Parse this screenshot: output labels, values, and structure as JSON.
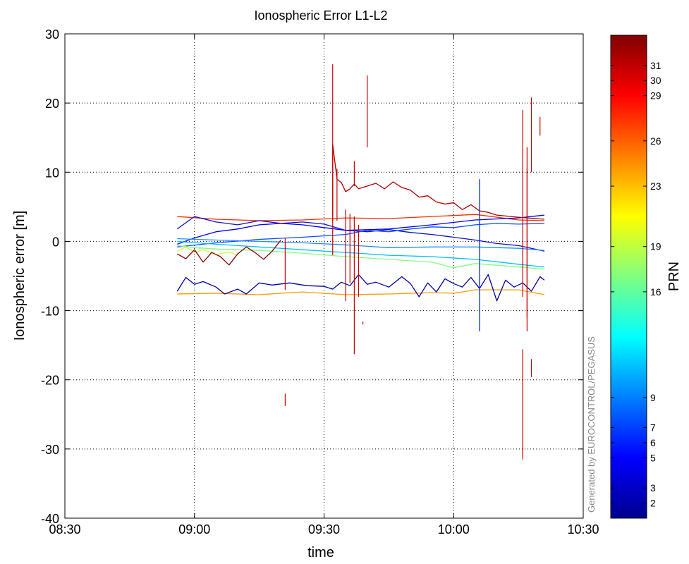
{
  "chart_data": {
    "type": "line",
    "title": "Ionospheric Error L1-L2",
    "xlabel": "time",
    "ylabel": "Ionospheric error [m]",
    "xlim": [
      "08:30",
      "10:30"
    ],
    "ylim": [
      -40,
      30
    ],
    "x_ticks": [
      "08:30",
      "09:00",
      "09:30",
      "10:00",
      "10:30"
    ],
    "y_ticks": [
      "30",
      "20",
      "10",
      "0",
      "-10",
      "-20",
      "-30",
      "-40"
    ],
    "grid": true,
    "colorbar": {
      "label": "PRN",
      "range": [
        1,
        33
      ],
      "ticks": [
        "31",
        "30",
        "29",
        "26",
        "23",
        "19",
        "16",
        "9",
        "7",
        "6",
        "5",
        "3",
        "2"
      ],
      "colormap": "jet"
    },
    "watermark": "Generated by EUROCONTROL/PEGASUS",
    "series": [
      {
        "prn": 30,
        "color": "#ff2a00",
        "points": [
          [
            "08:56",
            3.6
          ],
          [
            "09:05",
            3.2
          ],
          [
            "09:15",
            3.0
          ],
          [
            "09:25",
            3.1
          ],
          [
            "09:35",
            3.4
          ],
          [
            "09:45",
            3.3
          ],
          [
            "09:55",
            3.6
          ],
          [
            "10:05",
            3.9
          ],
          [
            "10:15",
            3.1
          ],
          [
            "10:21",
            3.0
          ]
        ]
      },
      {
        "prn": 3,
        "color": "#1010c8",
        "points": [
          [
            "08:56",
            1.8
          ],
          [
            "09:00",
            3.6
          ],
          [
            "09:05",
            2.8
          ],
          [
            "09:10",
            2.4
          ],
          [
            "09:15",
            3.0
          ],
          [
            "09:20",
            2.6
          ],
          [
            "09:25",
            2.8
          ],
          [
            "09:30",
            2.5
          ],
          [
            "09:35",
            1.6
          ],
          [
            "09:40",
            1.4
          ],
          [
            "09:45",
            1.7
          ],
          [
            "09:50",
            1.3
          ],
          [
            "09:55",
            1.0
          ],
          [
            "10:00",
            0.6
          ],
          [
            "10:05",
            0.2
          ],
          [
            "10:10",
            -0.3
          ],
          [
            "10:15",
            -0.6
          ],
          [
            "10:21",
            -1.4
          ]
        ]
      },
      {
        "prn": 5,
        "color": "#0000ff",
        "points": [
          [
            "08:56",
            -0.4
          ],
          [
            "09:00",
            0.5
          ],
          [
            "09:05",
            1.4
          ],
          [
            "09:10",
            1.8
          ],
          [
            "09:15",
            2.4
          ],
          [
            "09:20",
            2.6
          ],
          [
            "09:25",
            2.4
          ],
          [
            "09:30",
            2.0
          ],
          [
            "09:35",
            1.6
          ],
          [
            "09:45",
            1.8
          ],
          [
            "09:55",
            2.4
          ],
          [
            "10:05",
            3.1
          ],
          [
            "10:15",
            3.4
          ],
          [
            "10:21",
            3.8
          ]
        ]
      },
      {
        "prn": 6,
        "color": "#0a4cff",
        "points": [
          [
            "08:56",
            -0.8
          ],
          [
            "09:05",
            -0.2
          ],
          [
            "09:15",
            0.3
          ],
          [
            "09:25",
            0.6
          ],
          [
            "09:35",
            1.0
          ],
          [
            "09:40",
            1.6
          ],
          [
            "09:45",
            1.4
          ],
          [
            "09:50",
            1.8
          ],
          [
            "09:55",
            2.1
          ],
          [
            "10:00",
            2.0
          ],
          [
            "10:05",
            2.4
          ],
          [
            "10:10",
            2.6
          ],
          [
            "10:15",
            2.5
          ],
          [
            "10:21",
            2.6
          ]
        ]
      },
      {
        "prn": 9,
        "color": "#1e90ff",
        "points": [
          [
            "08:56",
            0.4
          ],
          [
            "09:05",
            0.2
          ],
          [
            "09:15",
            0.0
          ],
          [
            "09:25",
            -0.2
          ],
          [
            "09:35",
            -0.5
          ],
          [
            "09:45",
            -0.9
          ],
          [
            "09:55",
            -0.8
          ],
          [
            "10:05",
            -0.8
          ],
          [
            "10:15",
            -1.0
          ],
          [
            "10:21",
            -1.3
          ]
        ]
      },
      {
        "prn": 11,
        "color": "#00c0ff",
        "points": [
          [
            "08:56",
            0.0
          ],
          [
            "09:05",
            -0.4
          ],
          [
            "09:15",
            -0.8
          ],
          [
            "09:25",
            -1.2
          ],
          [
            "09:35",
            -1.6
          ],
          [
            "09:45",
            -2.0
          ],
          [
            "09:55",
            -2.2
          ],
          [
            "10:05",
            -2.6
          ],
          [
            "10:15",
            -3.3
          ],
          [
            "10:21",
            -3.7
          ]
        ]
      },
      {
        "prn": 18,
        "color": "#80ff80",
        "points": [
          [
            "08:56",
            -0.6
          ],
          [
            "09:00",
            -0.9
          ],
          [
            "09:05",
            -1.1
          ],
          [
            "09:15",
            -1.3
          ],
          [
            "09:25",
            -1.7
          ],
          [
            "09:35",
            -2.2
          ],
          [
            "09:45",
            -2.6
          ],
          [
            "09:55",
            -3.0
          ],
          [
            "10:00",
            -3.8
          ],
          [
            "10:05",
            -3.2
          ],
          [
            "10:15",
            -3.7
          ],
          [
            "10:21",
            -4.0
          ]
        ]
      },
      {
        "prn": 20,
        "color": "#ccff33",
        "points": [
          [
            "08:56",
            -1.4
          ],
          [
            "08:58",
            -0.8
          ],
          [
            "09:00",
            -1.6
          ],
          [
            "09:02",
            -1.2
          ],
          [
            "09:05",
            -1.9
          ],
          [
            "09:08",
            -1.5
          ],
          [
            "09:10",
            -2.0
          ]
        ]
      },
      {
        "prn": 33,
        "color": "#8b0000",
        "points": [
          [
            "08:56",
            -1.8
          ],
          [
            "08:58",
            -2.5
          ],
          [
            "09:00",
            -1.2
          ],
          [
            "09:02",
            -3.0
          ],
          [
            "09:04",
            -1.6
          ],
          [
            "09:06",
            -2.2
          ],
          [
            "09:08",
            -3.4
          ],
          [
            "09:10",
            -1.8
          ],
          [
            "09:12",
            -0.8
          ],
          [
            "09:14",
            -1.6
          ],
          [
            "09:16",
            -2.6
          ],
          [
            "09:18",
            -1.4
          ],
          [
            "09:20",
            0.2
          ]
        ]
      },
      {
        "prn": 32,
        "color": "#b00000",
        "points": [
          [
            "09:32",
            3.0
          ],
          [
            "09:32",
            14.0
          ],
          [
            "09:33",
            9.0
          ],
          [
            "09:34",
            8.5
          ],
          [
            "09:35",
            7.2
          ],
          [
            "09:36",
            7.6
          ],
          [
            "09:37",
            8.3
          ],
          [
            "09:38",
            7.6
          ],
          [
            "09:40",
            8.0
          ],
          [
            "09:42",
            8.4
          ],
          [
            "09:44",
            7.6
          ],
          [
            "09:46",
            8.6
          ],
          [
            "09:48",
            7.8
          ],
          [
            "09:50",
            7.4
          ],
          [
            "09:52",
            6.4
          ],
          [
            "09:54",
            6.6
          ],
          [
            "09:56",
            5.7
          ],
          [
            "09:58",
            5.4
          ],
          [
            "10:00",
            5.6
          ],
          [
            "10:02",
            4.6
          ],
          [
            "10:04",
            5.3
          ],
          [
            "10:06",
            4.4
          ],
          [
            "10:08",
            4.2
          ],
          [
            "10:10",
            3.8
          ],
          [
            "10:15",
            3.5
          ],
          [
            "10:21",
            3.2
          ]
        ]
      },
      {
        "prn": 23,
        "color": "#ff9900",
        "points": [
          [
            "08:56",
            -7.6
          ],
          [
            "09:05",
            -7.5
          ],
          [
            "09:15",
            -7.7
          ],
          [
            "09:25",
            -7.3
          ],
          [
            "09:35",
            -7.7
          ],
          [
            "09:45",
            -7.6
          ],
          [
            "09:55",
            -7.4
          ],
          [
            "10:00",
            -7.5
          ],
          [
            "10:05",
            -7.0
          ],
          [
            "10:15",
            -7.0
          ],
          [
            "10:21",
            -7.7
          ]
        ]
      },
      {
        "prn": 2,
        "color": "#0000a8",
        "points": [
          [
            "08:56",
            -7.2
          ],
          [
            "08:58",
            -5.2
          ],
          [
            "09:00",
            -6.2
          ],
          [
            "09:02",
            -5.8
          ],
          [
            "09:05",
            -6.6
          ],
          [
            "09:07",
            -7.6
          ],
          [
            "09:10",
            -6.9
          ],
          [
            "09:12",
            -7.6
          ],
          [
            "09:15",
            -6.0
          ],
          [
            "09:18",
            -6.3
          ],
          [
            "09:22",
            -6.0
          ],
          [
            "09:26",
            -6.4
          ],
          [
            "09:30",
            -6.5
          ],
          [
            "09:32",
            -6.9
          ],
          [
            "09:34",
            -5.9
          ],
          [
            "09:36",
            -6.4
          ],
          [
            "09:38",
            -4.8
          ],
          [
            "09:40",
            -6.2
          ],
          [
            "09:42",
            -5.9
          ],
          [
            "09:45",
            -6.6
          ],
          [
            "09:48",
            -5.1
          ],
          [
            "09:50",
            -6.1
          ],
          [
            "09:52",
            -8.0
          ],
          [
            "09:54",
            -6.0
          ],
          [
            "09:56",
            -7.3
          ],
          [
            "09:58",
            -5.4
          ],
          [
            "10:00",
            -6.1
          ],
          [
            "10:02",
            -6.6
          ],
          [
            "10:04",
            -5.2
          ],
          [
            "10:06",
            -6.8
          ],
          [
            "10:08",
            -4.8
          ],
          [
            "10:10",
            -8.6
          ],
          [
            "10:12",
            -5.6
          ],
          [
            "10:14",
            -6.6
          ],
          [
            "10:16",
            -6.0
          ],
          [
            "10:18",
            -7.2
          ],
          [
            "10:20",
            -5.1
          ],
          [
            "10:21",
            -5.6
          ]
        ]
      },
      {
        "prn": 7,
        "color": "#0030ff",
        "points": [
          [
            "10:06",
            9.0
          ],
          [
            "10:06",
            -13.0
          ]
        ]
      }
    ],
    "spikes": [
      {
        "x": "09:21",
        "y1": -7.0,
        "y2": 0.5
      },
      {
        "x": "09:21",
        "y1": -22.0,
        "y2": -23.8
      },
      {
        "x": "09:32",
        "y1": -2.0,
        "y2": 25.6
      },
      {
        "x": "09:33",
        "y1": 3.0,
        "y2": 10.5
      },
      {
        "x": "09:35",
        "y1": -8.6,
        "y2": 4.6
      },
      {
        "x": "09:36",
        "y1": -6.0,
        "y2": 4.0
      },
      {
        "x": "09:37",
        "y1": -16.3,
        "y2": 3.6
      },
      {
        "x": "09:38",
        "y1": -8.0,
        "y2": 2.4
      },
      {
        "x": "09:37",
        "y1": 8.0,
        "y2": 11.6
      },
      {
        "x": "09:39",
        "y1": -12.0,
        "y2": -11.6
      },
      {
        "x": "09:40",
        "y1": 13.6,
        "y2": 24.0
      },
      {
        "x": "10:16",
        "y1": -31.5,
        "y2": -15.6
      },
      {
        "x": "10:16",
        "y1": -8.0,
        "y2": 19.0
      },
      {
        "x": "10:17",
        "y1": -13.0,
        "y2": 13.6
      },
      {
        "x": "10:17",
        "y1": -11.0,
        "y2": 10.6
      },
      {
        "x": "10:18",
        "y1": -19.6,
        "y2": -17.0
      },
      {
        "x": "10:18",
        "y1": 10.0,
        "y2": 20.8
      },
      {
        "x": "10:20",
        "y1": 15.3,
        "y2": 18.0
      }
    ]
  }
}
